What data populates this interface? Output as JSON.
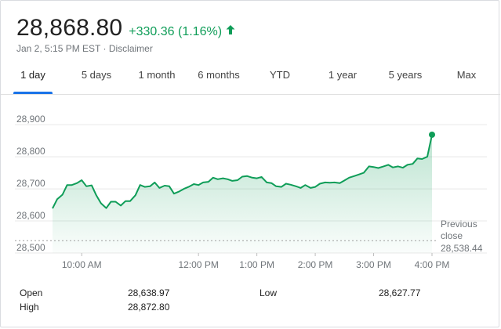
{
  "quote": {
    "price": "28,868.80",
    "change": "+330.36 (1.16%)",
    "timestamp": "Jan 2, 5:15 PM EST",
    "separator": " · ",
    "disclaimer": "Disclaimer",
    "up_color": "#0f9d58",
    "arrow_icon": "arrow-up-icon"
  },
  "tabs": [
    {
      "label": "1 day",
      "active": true
    },
    {
      "label": "5 days"
    },
    {
      "label": "1 month"
    },
    {
      "label": "6 months"
    },
    {
      "label": "YTD"
    },
    {
      "label": "1 year"
    },
    {
      "label": "5 years"
    },
    {
      "label": "Max"
    }
  ],
  "chart_data": {
    "type": "area",
    "y_ticks": [
      "28,900",
      "28,800",
      "28,700",
      "28,600",
      "28,500"
    ],
    "y_tick_values": [
      28900,
      28800,
      28700,
      28600,
      28500
    ],
    "ylim": [
      28500,
      28920
    ],
    "x_ticks": [
      "10:00 AM",
      "12:00 PM",
      "1:00 PM",
      "2:00 PM",
      "3:00 PM",
      "4:00 PM"
    ],
    "x_tick_hours": [
      10,
      12,
      13,
      14,
      15,
      16
    ],
    "xlim": [
      9.5,
      16.0
    ],
    "grid": true,
    "series": [
      {
        "color": "#0f9d58",
        "x": [
          9.5,
          9.58,
          9.67,
          9.75,
          9.83,
          9.92,
          10.0,
          10.08,
          10.17,
          10.25,
          10.33,
          10.42,
          10.5,
          10.58,
          10.67,
          10.75,
          10.83,
          10.92,
          11.0,
          11.08,
          11.17,
          11.25,
          11.33,
          11.42,
          11.5,
          11.58,
          11.67,
          11.75,
          11.83,
          11.92,
          12.0,
          12.08,
          12.17,
          12.25,
          12.33,
          12.42,
          12.5,
          12.58,
          12.67,
          12.75,
          12.83,
          12.92,
          13.0,
          13.08,
          13.17,
          13.25,
          13.33,
          13.42,
          13.5,
          13.58,
          13.67,
          13.75,
          13.83,
          13.92,
          14.0,
          14.08,
          14.17,
          14.25,
          14.33,
          14.42,
          14.5,
          14.58,
          14.67,
          14.75,
          14.83,
          14.92,
          15.0,
          15.08,
          15.17,
          15.25,
          15.33,
          15.42,
          15.5,
          15.58,
          15.67,
          15.75,
          15.83,
          15.92,
          16.0
        ],
        "y": [
          28638.97,
          28668,
          28682,
          28712,
          28712,
          28718,
          28727,
          28708,
          28711,
          28680,
          28655,
          28640,
          28660,
          28660,
          28648,
          28662,
          28662,
          28680,
          28712,
          28706,
          28708,
          28720,
          28703,
          28710,
          28708,
          28685,
          28692,
          28700,
          28706,
          28715,
          28712,
          28720,
          28722,
          28735,
          28730,
          28733,
          28730,
          28725,
          28727,
          28738,
          28740,
          28735,
          28733,
          28737,
          28720,
          28718,
          28708,
          28706,
          28716,
          28713,
          28708,
          28703,
          28712,
          28703,
          28706,
          28716,
          28720,
          28719,
          28720,
          28718,
          28726,
          28735,
          28740,
          28745,
          28750,
          28770,
          28768,
          28765,
          28770,
          28775,
          28767,
          28770,
          28766,
          28775,
          28778,
          28795,
          28793,
          28800,
          28868.8
        ]
      }
    ],
    "previous_close": {
      "label_line1": "Previous",
      "label_line2": "close",
      "value": 28538.44,
      "value_label": "28,538.44"
    }
  },
  "stats": {
    "open_label": "Open",
    "open_value": "28,638.97",
    "high_label": "High",
    "high_value": "28,872.80",
    "low_label": "Low",
    "low_value": "28,627.77"
  }
}
